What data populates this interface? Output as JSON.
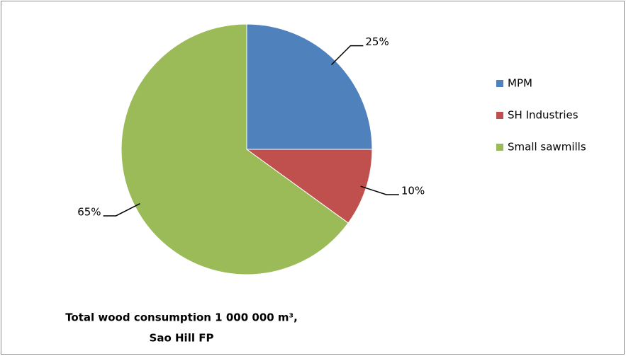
{
  "chart_data": {
    "type": "pie",
    "title": [
      "Total wood consumption 1 000 000 m³,",
      "Sao Hill FP"
    ],
    "categories": [
      "MPM",
      "SH Industries",
      "Small sawmills"
    ],
    "values": [
      25,
      10,
      65
    ],
    "value_labels": [
      "25%",
      "10%",
      "65%"
    ],
    "colors": [
      "#4f81bd",
      "#c0504d",
      "#9bbb59"
    ],
    "legend": "right"
  }
}
